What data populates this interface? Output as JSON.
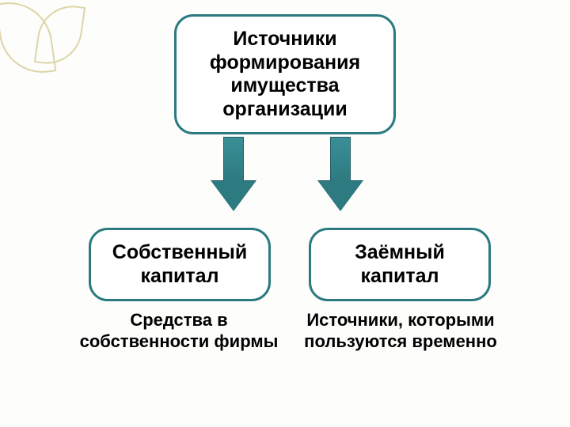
{
  "slide": {
    "background_color": "#fdfdfb",
    "decoration_color": "#dcd5a8",
    "box_border_color": "#2a7a7f",
    "box_fill_color": "#ffffff",
    "text_color": "#000000",
    "arrow_fill": "#2d7a80",
    "arrow_stroke": "#246066"
  },
  "diagram": {
    "type": "tree",
    "root": {
      "title": "Источники формирования имущества организации",
      "fontsize": 25,
      "fontweight": "bold"
    },
    "children": [
      {
        "title": "Собственный капитал",
        "description": "Средства в собственности фирмы",
        "fontsize": 25
      },
      {
        "title": "Заёмный капитал",
        "description": "Источники, которыми пользуются временно",
        "fontsize": 25
      }
    ],
    "arrow_style": {
      "width": 56,
      "height": 96,
      "stem_width": 26,
      "head_height": 38
    }
  }
}
